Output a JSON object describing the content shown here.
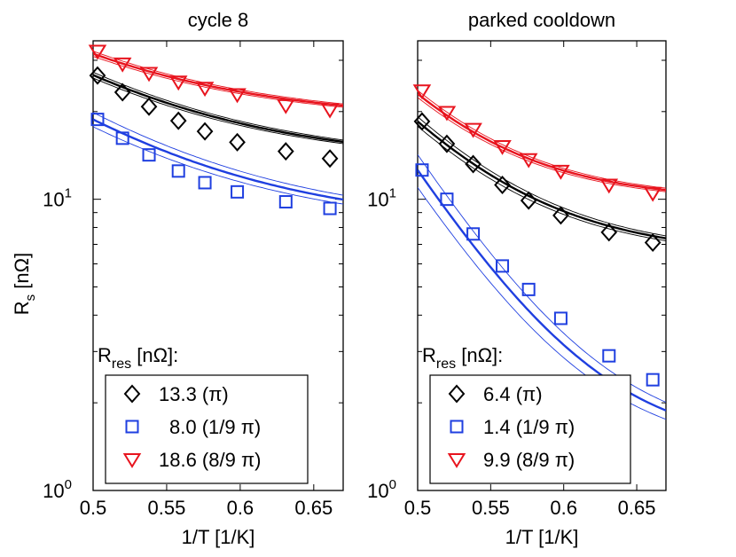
{
  "figure": {
    "ylabel_main": "R",
    "ylabel_sub": "s",
    "ylabel_unit": " [nΩ]",
    "legend_title_main": "R",
    "legend_title_sub": "res",
    "legend_title_unit": " [nΩ]:",
    "ytick_base": "10",
    "ytick_exp_top": "1",
    "ytick_exp_bottom": "0",
    "colors": {
      "black": "#000000",
      "blue": "#1f3fe0",
      "red": "#e8141e"
    }
  },
  "chart_data": [
    {
      "type": "scatter",
      "title": "cycle 8",
      "xlabel": "1/T [1/K]",
      "ylabel": "R_s [nΩ]",
      "xscale": "linear",
      "yscale": "log",
      "xlim": [
        0.5,
        0.67
      ],
      "ylim": [
        1,
        35
      ],
      "xticks": [
        0.5,
        0.55,
        0.6,
        0.65
      ],
      "xtick_labels": [
        "0.5",
        "0.55",
        "0.6",
        "0.65"
      ],
      "legend_title": "R_res [nΩ]:",
      "legend_position": "bottom",
      "series": [
        {
          "name": "13.3 (π)",
          "label_value": "13.3",
          "label_sub": "(π)",
          "color": "#000000",
          "marker": "diamond",
          "x": [
            0.503,
            0.52,
            0.538,
            0.558,
            0.576,
            0.598,
            0.631,
            0.661
          ],
          "y": [
            26.6,
            23.3,
            20.8,
            18.6,
            17.1,
            15.7,
            14.6,
            13.8
          ],
          "fit": {
            "rres": 13.3,
            "a": 13.4,
            "b": 1.0,
            "band": 0.035
          }
        },
        {
          "name": "8.0 (1/9 π)",
          "label_value": "8.0",
          "label_sub": "(1/9 π)",
          "color": "#1f3fe0",
          "marker": "square",
          "x": [
            0.503,
            0.52,
            0.538,
            0.558,
            0.576,
            0.598,
            0.631,
            0.661
          ],
          "y": [
            18.8,
            16.2,
            14.2,
            12.5,
            11.4,
            10.6,
            9.8,
            9.3
          ],
          "fit": {
            "rres": 8.0,
            "a": 10.8,
            "b": 1.0,
            "band": 0.08
          }
        },
        {
          "name": "18.6 (8/9 π)",
          "label_value": "18.6",
          "label_sub": "(8/9 π)",
          "color": "#e8141e",
          "marker": "triangle-down",
          "x": [
            0.503,
            0.52,
            0.538,
            0.558,
            0.576,
            0.598,
            0.631,
            0.661
          ],
          "y": [
            32.3,
            29.2,
            27.1,
            25.3,
            24.1,
            22.9,
            21.0,
            20.3
          ],
          "fit": {
            "rres": 18.6,
            "a": 13.0,
            "b": 1.0,
            "band": 0.035
          }
        }
      ]
    },
    {
      "type": "scatter",
      "title": "parked cooldown",
      "xlabel": "1/T [1/K]",
      "ylabel": "",
      "xscale": "linear",
      "yscale": "log",
      "xlim": [
        0.5,
        0.67
      ],
      "ylim": [
        1,
        35
      ],
      "xticks": [
        0.5,
        0.55,
        0.6,
        0.65
      ],
      "xtick_labels": [
        "0.5",
        "0.55",
        "0.6",
        "0.65"
      ],
      "legend_title": "R_res [nΩ]:",
      "legend_position": "bottom",
      "series": [
        {
          "name": "6.4 (π)",
          "label_value": "6.4",
          "label_sub": "(π)",
          "color": "#000000",
          "marker": "diamond",
          "x": [
            0.503,
            0.52,
            0.538,
            0.558,
            0.576,
            0.598,
            0.631,
            0.661
          ],
          "y": [
            18.5,
            15.5,
            13.2,
            11.2,
            9.9,
            8.8,
            7.7,
            7.1
          ],
          "fit": {
            "rres": 6.4,
            "a": 12.1,
            "b": 1.5,
            "band": 0.05
          }
        },
        {
          "name": "1.4 (1/9 π)",
          "label_value": "1.4",
          "label_sub": "(1/9 π)",
          "color": "#1f3fe0",
          "marker": "square",
          "x": [
            0.503,
            0.52,
            0.538,
            0.558,
            0.576,
            0.598,
            0.631,
            0.661
          ],
          "y": [
            12.6,
            10.0,
            7.6,
            5.9,
            4.9,
            3.9,
            2.9,
            2.4
          ],
          "fit": {
            "rres": 1.4,
            "a": 11.2,
            "b": 1.85,
            "band": 0.14
          }
        },
        {
          "name": "9.9 (8/9 π)",
          "label_value": "9.9",
          "label_sub": "(8/9 π)",
          "color": "#e8141e",
          "marker": "triangle-down",
          "x": [
            0.503,
            0.52,
            0.538,
            0.558,
            0.576,
            0.598,
            0.631,
            0.661
          ],
          "y": [
            23.6,
            19.9,
            17.4,
            15.2,
            13.7,
            12.5,
            11.2,
            10.5
          ],
          "fit": {
            "rres": 9.9,
            "a": 13.1,
            "b": 1.6,
            "band": 0.04
          }
        }
      ]
    }
  ]
}
